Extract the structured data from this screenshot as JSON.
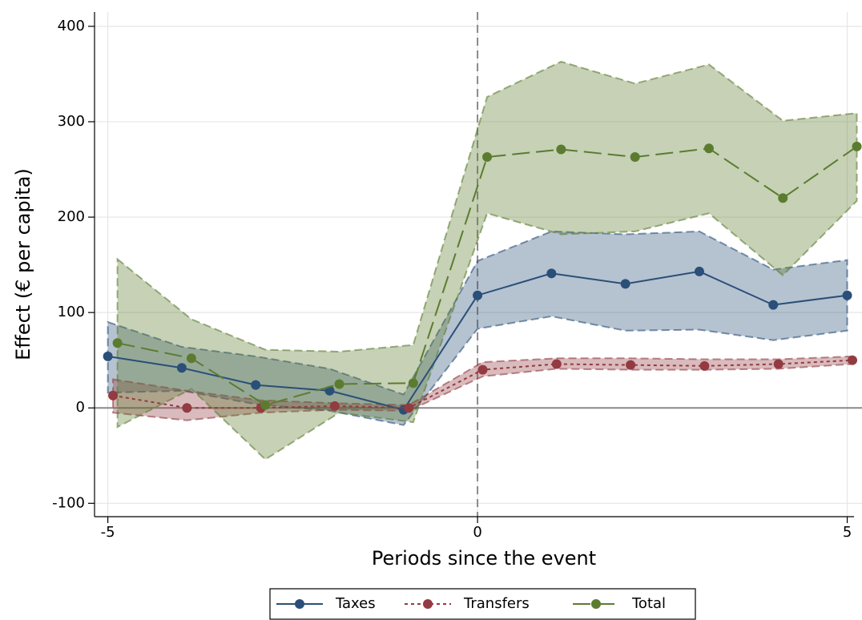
{
  "chart_data": {
    "type": "line",
    "x_label": "Periods since the event",
    "y_label": "Effect (€ per capita)",
    "xlim": [
      -5.18,
      5.2
    ],
    "ylim": [
      -114,
      415
    ],
    "xticks": [
      -5,
      0,
      5
    ],
    "yticks": [
      -100,
      0,
      100,
      200,
      300,
      400
    ],
    "grid": true,
    "vline": 0,
    "hline": 0,
    "legend": "bottom",
    "series": [
      {
        "name": "Taxes",
        "color": "#2a4f78",
        "dash": "solid",
        "x": [
          -5,
          -4,
          -3,
          -2,
          -1,
          0,
          1,
          2,
          3,
          4,
          5
        ],
        "values": [
          54,
          42,
          24,
          18,
          -2,
          118,
          141,
          130,
          143,
          108,
          118
        ],
        "upper": [
          90,
          64,
          54,
          41,
          14,
          154,
          185,
          182,
          185,
          145,
          155
        ],
        "lower": [
          16,
          18,
          4,
          -3,
          -18,
          83,
          96,
          81,
          82,
          71,
          81
        ]
      },
      {
        "name": "Transfers",
        "color": "#933b41",
        "dash": "dot",
        "x": [
          -4.93,
          -3.93,
          -2.93,
          -1.93,
          -0.93,
          0.07,
          1.07,
          2.07,
          3.07,
          4.07,
          5.07
        ],
        "values": [
          13,
          0,
          0,
          2,
          0,
          40,
          46,
          45,
          44,
          46,
          50
        ],
        "upper": [
          30,
          18,
          8,
          5,
          3,
          48,
          52,
          52,
          51,
          51,
          54
        ],
        "lower": [
          -5,
          -13,
          -5,
          -2,
          -3,
          33,
          41,
          40,
          40,
          41,
          46
        ]
      },
      {
        "name": "Total",
        "color": "#5b7c2f",
        "dash": "dash",
        "x": [
          -4.87,
          -3.87,
          -2.87,
          -1.87,
          -0.87,
          0.13,
          1.13,
          2.13,
          3.13,
          4.13,
          5.13
        ],
        "values": [
          68,
          52,
          3,
          25,
          26,
          263,
          271,
          263,
          272,
          220,
          274
        ],
        "upper": [
          156,
          93,
          61,
          59,
          66,
          326,
          363,
          340,
          360,
          301,
          309
        ],
        "lower": [
          -20,
          20,
          -54,
          -5,
          -15,
          204,
          182,
          185,
          204,
          139,
          217
        ]
      }
    ]
  }
}
